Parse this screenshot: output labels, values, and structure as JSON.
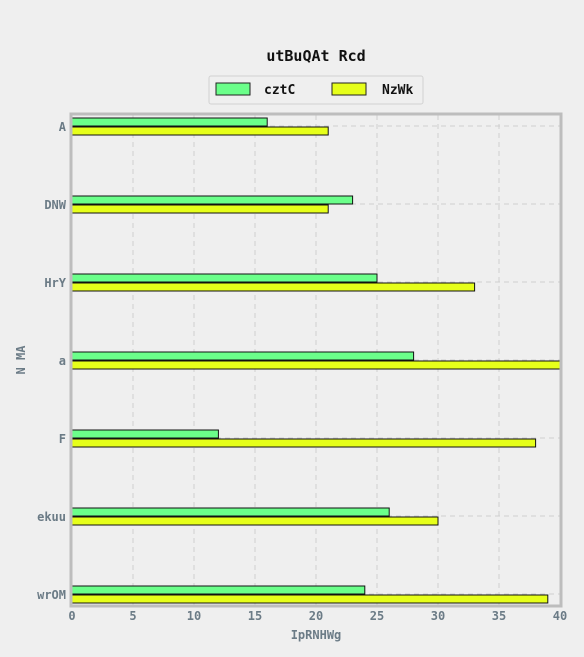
{
  "chart_data": {
    "type": "bar",
    "orientation": "horizontal",
    "title": "utBuQAt Rcd",
    "xlabel": "IpRNHWg",
    "ylabel": "N MA",
    "categories": [
      "A",
      "DNW",
      "HrY",
      "a",
      "F",
      "ekuu",
      "wrOM"
    ],
    "series": [
      {
        "name": "cztC",
        "color": "#6bff8a",
        "values": [
          16,
          23,
          25,
          28,
          12,
          26,
          24
        ]
      },
      {
        "name": "NzWk",
        "color": "#e6ff1a",
        "values": [
          21,
          21,
          33,
          40,
          38,
          30,
          39
        ]
      }
    ],
    "xlim": [
      0,
      40
    ],
    "xticks": [
      0,
      5,
      10,
      15,
      20,
      25,
      30,
      35,
      40
    ],
    "grid": true,
    "legend_position": "top-center"
  }
}
